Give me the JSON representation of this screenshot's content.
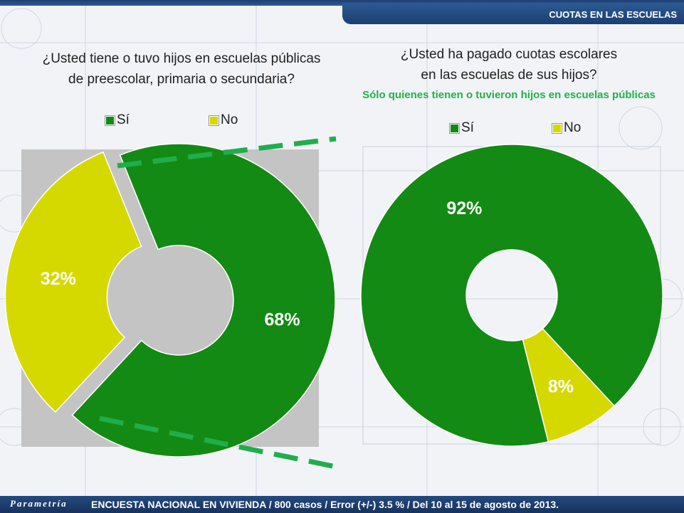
{
  "header": {
    "title": "CUOTAS EN LAS ESCUELAS"
  },
  "left": {
    "question_line1": "¿Usted tiene o tuvo hijos en escuelas públicas",
    "question_line2": "de preescolar, primaria o secundaria?"
  },
  "right": {
    "question_line1": "¿Usted ha pagado cuotas escolares",
    "question_line2": "en las escuelas de sus hijos?",
    "subtitle": "Sólo quienes tienen o tuvieron hijos en escuelas públicas"
  },
  "legend": {
    "yes": "Sí",
    "no": "No"
  },
  "colors": {
    "yes": "#138a13",
    "no": "#d6d900",
    "accent": "#1fae4b",
    "panel": "#c4c4c4"
  },
  "footer": {
    "brand": "Parametría",
    "text": "ENCUESTA NACIONAL EN VIVIENDA / 800 casos / Error (+/-) 3.5 % / Del 10 al 15 de agosto de 2013."
  },
  "chart_data": [
    {
      "type": "pie",
      "categories": [
        "Sí",
        "No"
      ],
      "values": [
        68,
        32
      ],
      "labels": [
        "68%",
        "32%"
      ]
    },
    {
      "type": "pie",
      "categories": [
        "Sí",
        "No"
      ],
      "values": [
        92,
        8
      ],
      "labels": [
        "92%",
        "8%"
      ]
    }
  ]
}
